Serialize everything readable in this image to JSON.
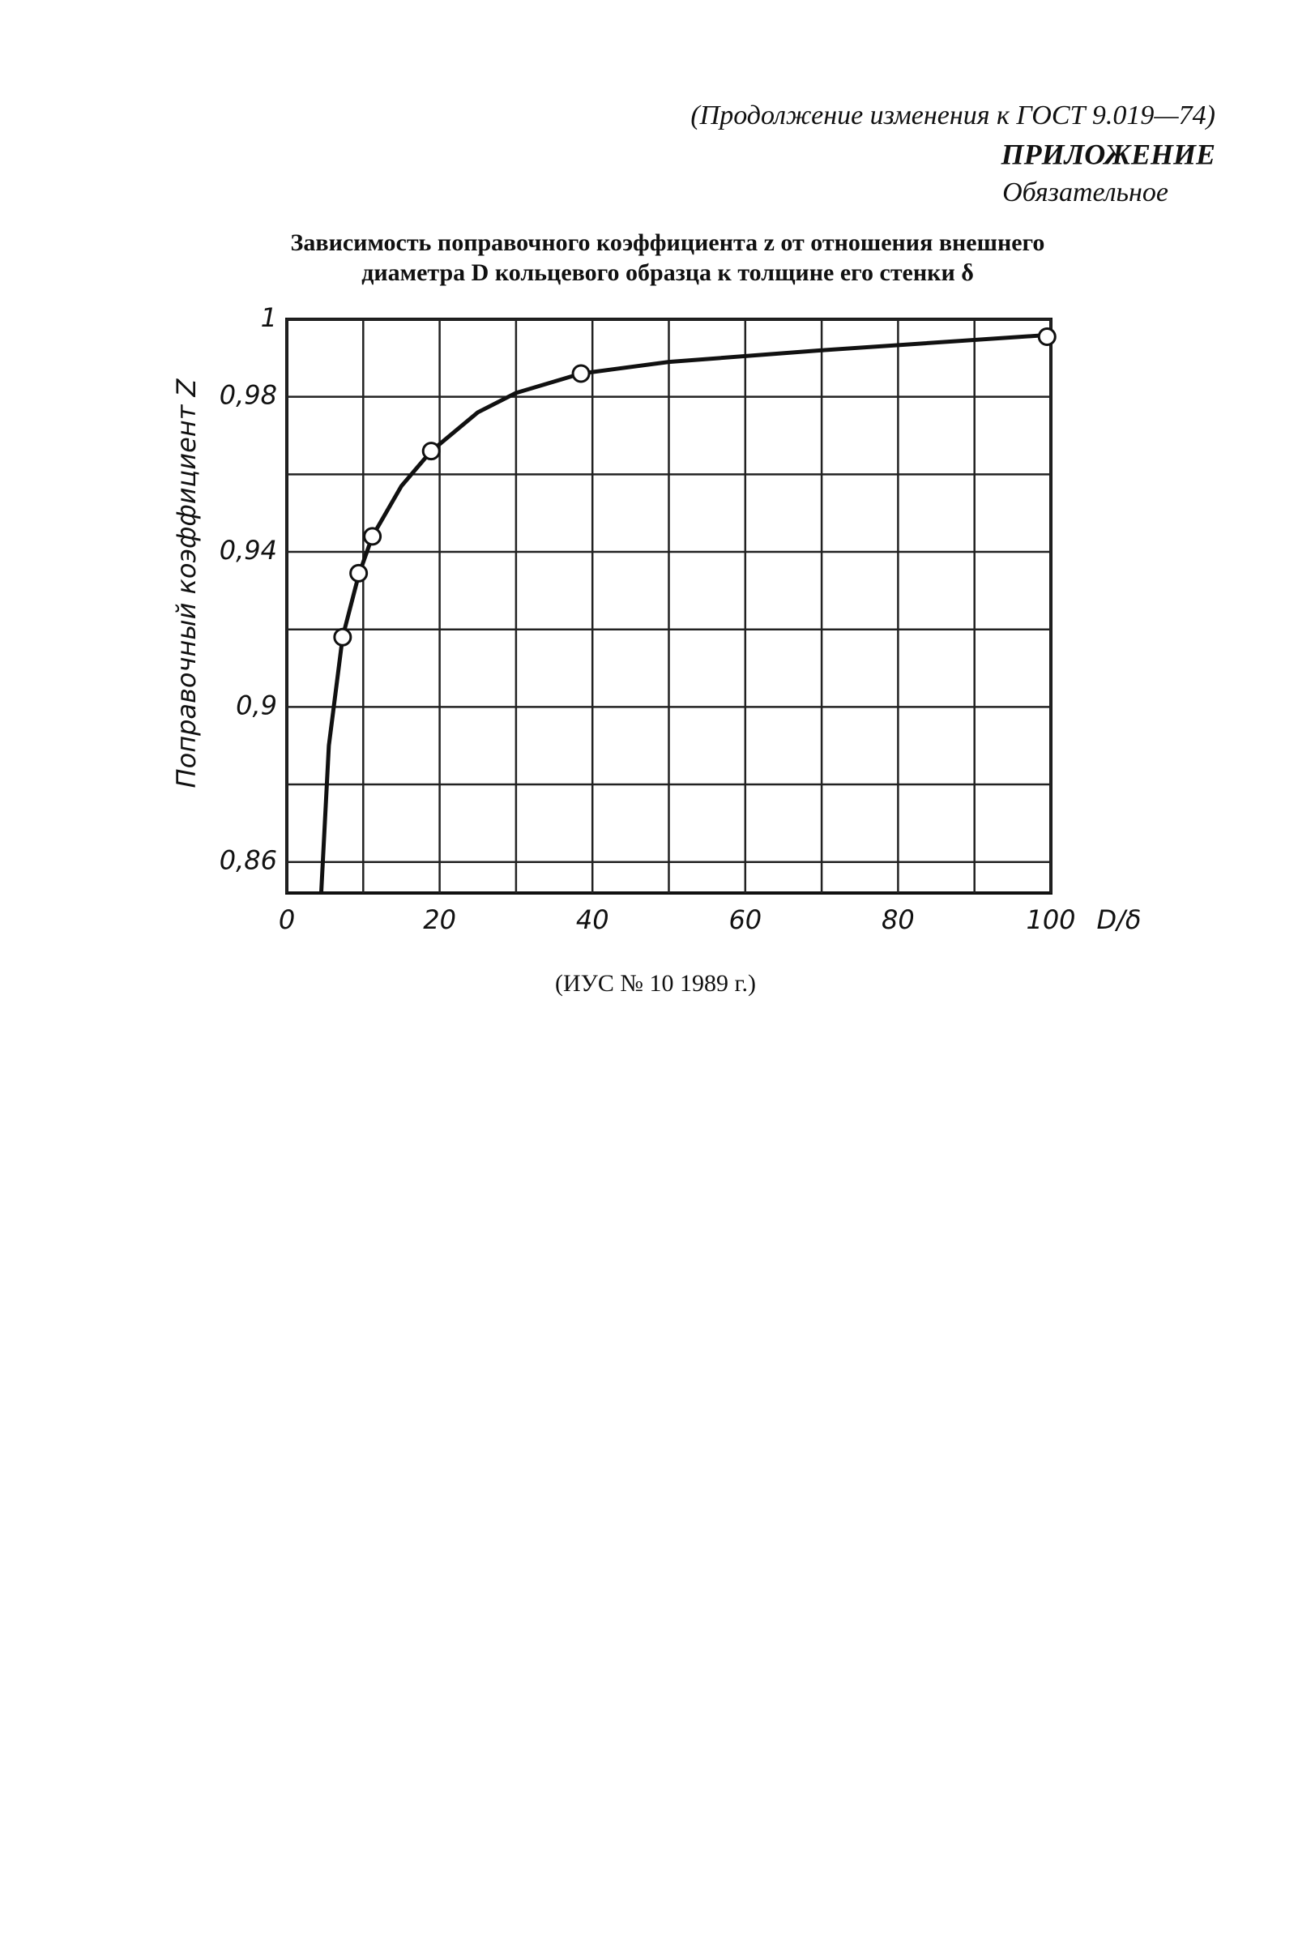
{
  "header": {
    "continuation": "(Продолжение изменения к ГОСТ 9.019—74)",
    "appendix": "ПРИЛОЖЕНИЕ",
    "status": "Обязательное"
  },
  "chart_data": {
    "type": "line",
    "title": [
      "Зависимость поправочного коэффициента z от отношения внешнего",
      "диаметра D кольцевого образца к толщине его стенки δ"
    ],
    "x_label": "D/δ",
    "y_label": "Поправочный коэффициент Z",
    "xlim": [
      0,
      100
    ],
    "ylim": [
      0.852,
      1
    ],
    "xticks": [
      0,
      20,
      40,
      60,
      80,
      100
    ],
    "yticks": [
      1,
      {
        "value": 0.98,
        "label": "0,98"
      },
      {
        "value": 0.94,
        "label": "0,94"
      },
      {
        "value": 0.9,
        "label": "0,9"
      },
      {
        "value": 0.86,
        "label": "0,86"
      }
    ],
    "xgrid": [
      10,
      30,
      50,
      70,
      90
    ],
    "ygrid": [
      0.96,
      0.92,
      0.88
    ],
    "grid": true,
    "series": [
      {
        "color": "#111",
        "markers": false,
        "x": [
          4.5,
          5.5,
          7.3,
          9.4,
          11.2,
          15,
          18.9,
          25,
          30,
          38.5,
          50,
          70,
          100
        ],
        "values": [
          0.852,
          0.89,
          0.918,
          0.934,
          0.944,
          0.957,
          0.966,
          0.976,
          0.981,
          0.986,
          0.989,
          0.992,
          0.996
        ]
      },
      {
        "color": "#111",
        "markers": true,
        "x": [
          7.3,
          9.4,
          11.2,
          18.9,
          38.5,
          99.5
        ],
        "values": [
          0.918,
          0.9345,
          0.944,
          0.966,
          0.986,
          0.9955
        ]
      }
    ]
  },
  "footer": "(ИУС № 10 1989 г.)"
}
